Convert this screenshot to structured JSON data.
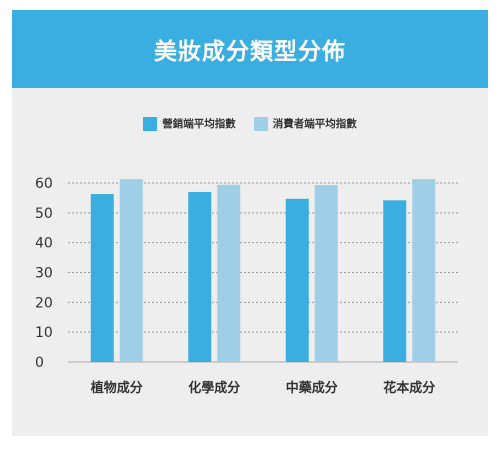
{
  "colors": {
    "header": "#3aaee0",
    "series_1": "#3aaee0",
    "series_2": "#9fcfe6",
    "card_bg": "#eeeeee"
  },
  "chart_data": {
    "type": "bar",
    "title": "美妝成分類型分佈",
    "categories": [
      "植物成分",
      "化學成分",
      "中藥成分",
      "花本成分"
    ],
    "series": [
      {
        "name": "營銷端平均指數",
        "values": [
          56.3,
          57,
          54.7,
          54.2
        ]
      },
      {
        "name": "消費者端平均指數",
        "values": [
          61.3,
          59.4,
          59.3,
          61.3
        ]
      }
    ],
    "yticks": [
      0,
      10,
      20,
      30,
      40,
      50,
      60
    ],
    "ylim": [
      0,
      60
    ],
    "grid": true,
    "legend_position": "top-center"
  }
}
